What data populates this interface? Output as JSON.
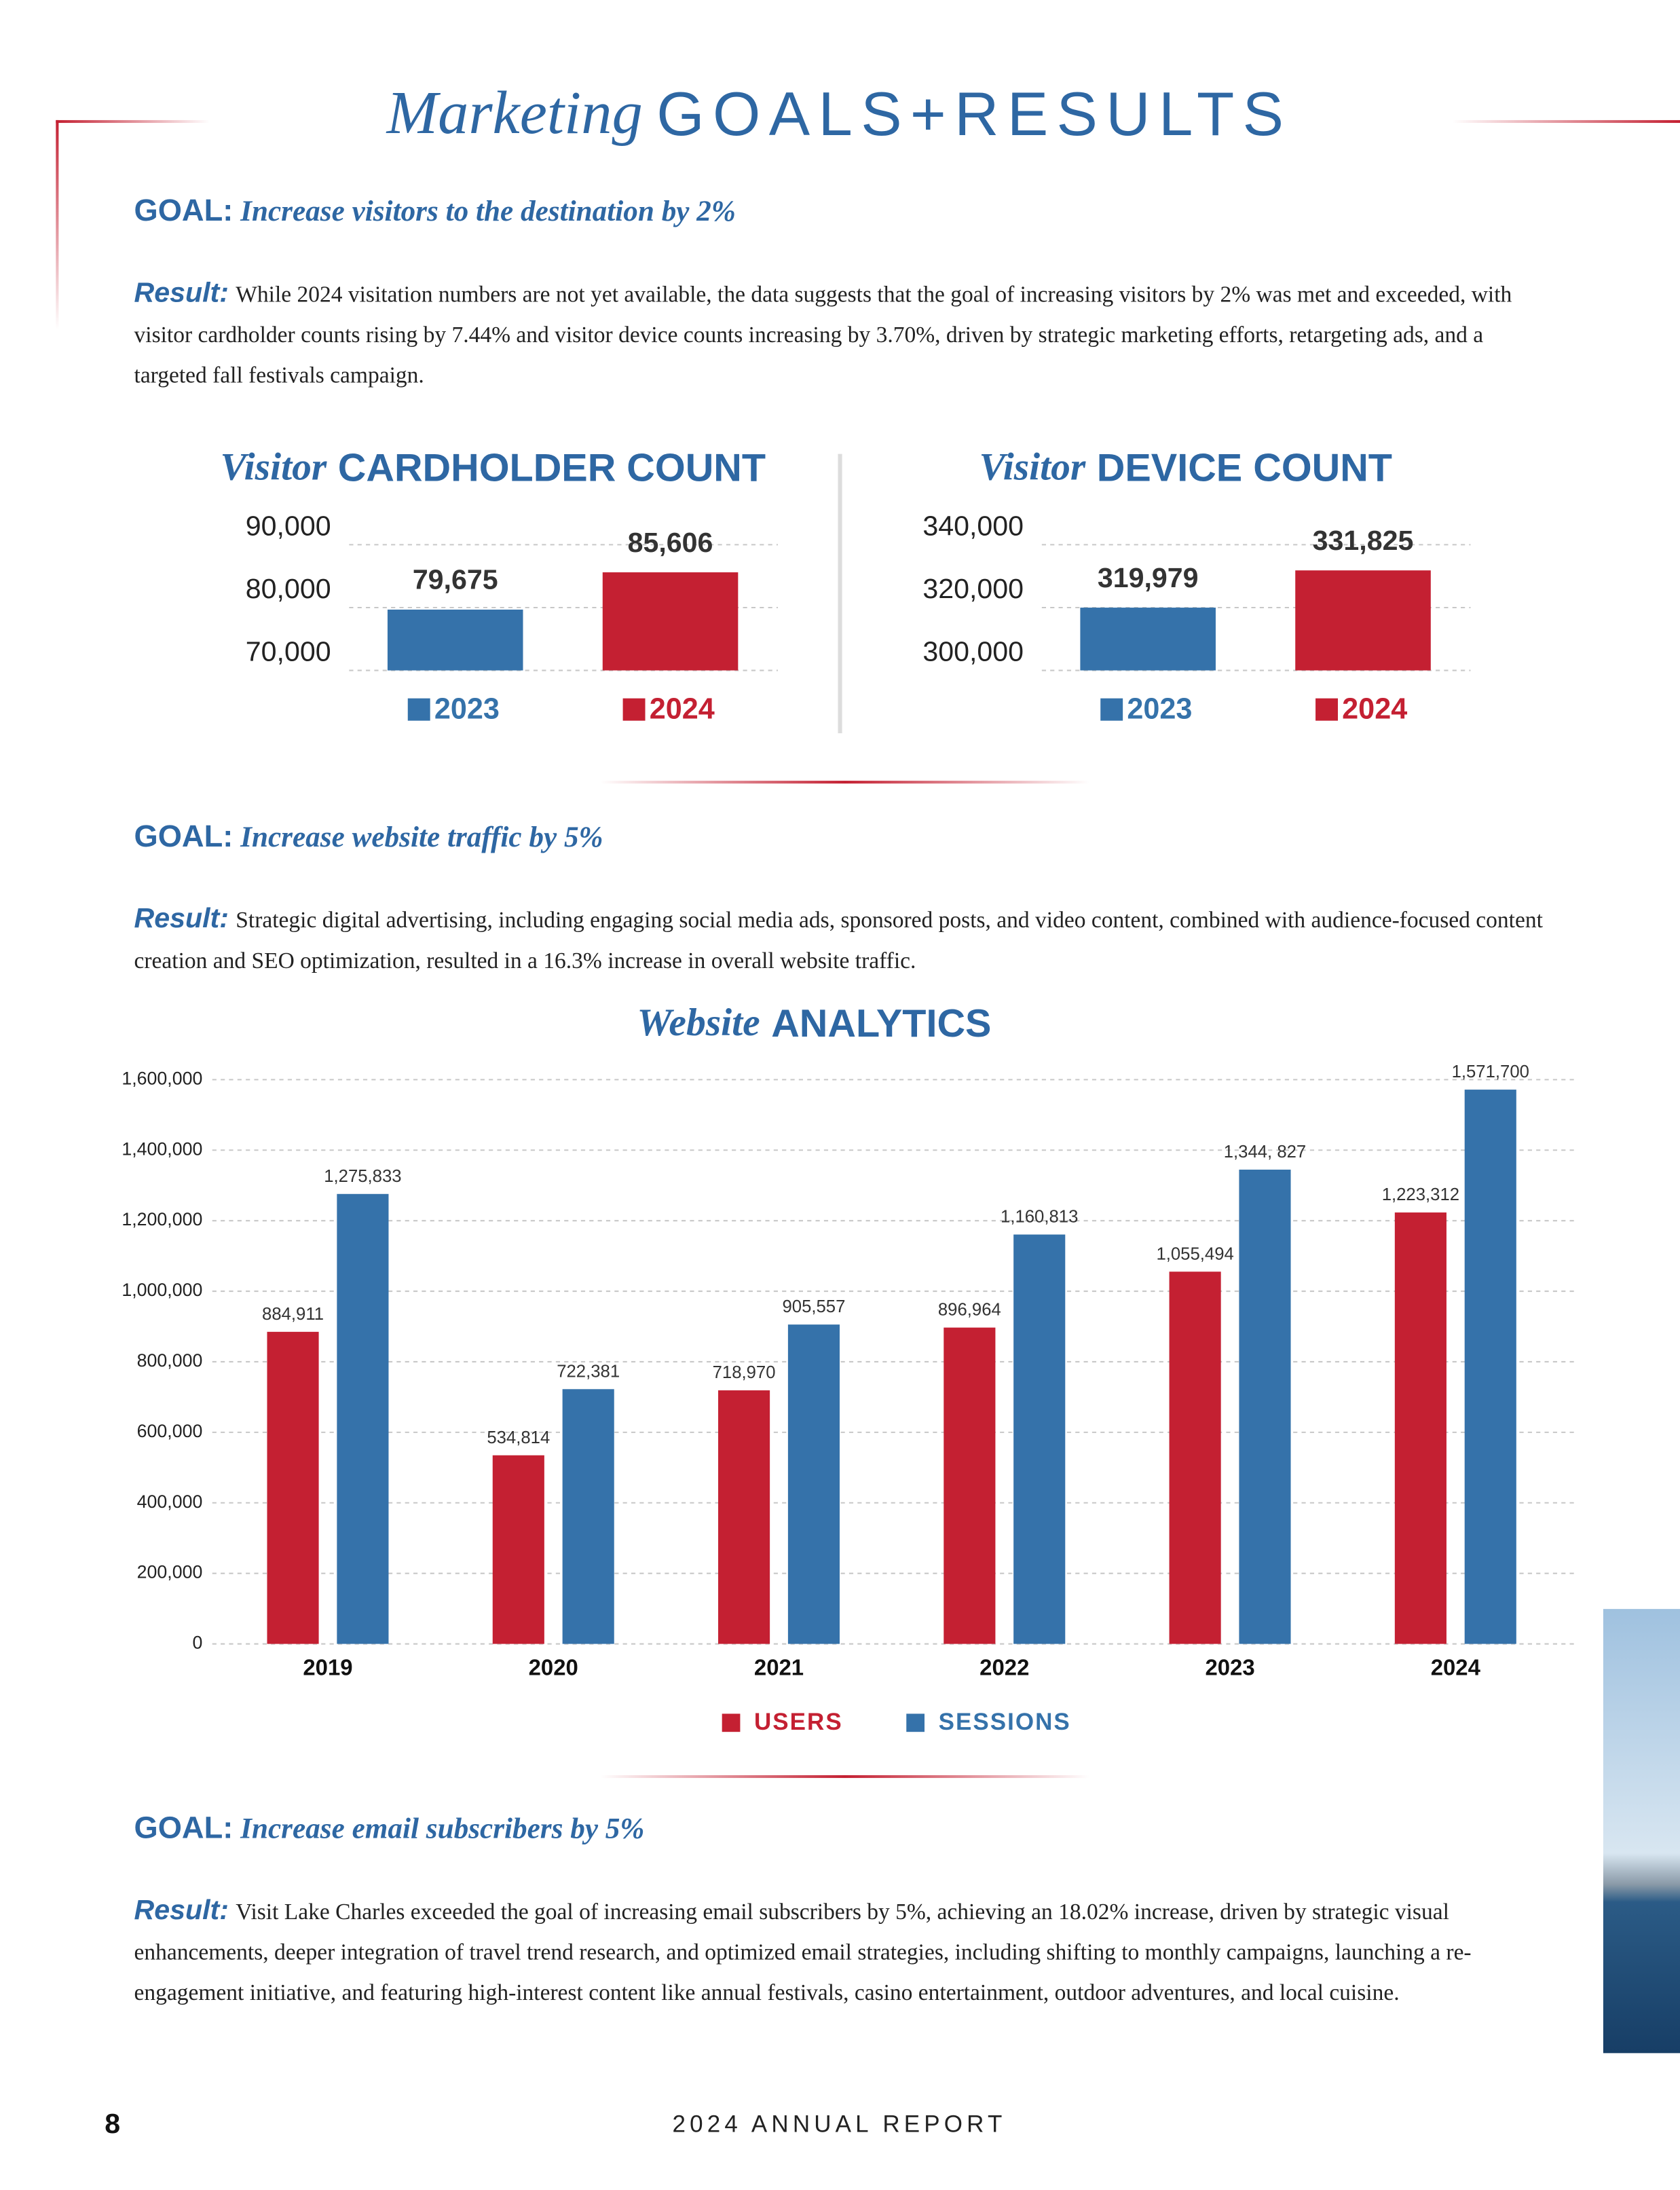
{
  "header": {
    "title_italic": "Marketing",
    "title": "GOALS+RESULTS"
  },
  "goals": [
    {
      "goal_label": "GOAL:",
      "goal": "Increase visitors to the destination by 2%",
      "result_label": "Result:",
      "result": "While 2024 visitation numbers are not yet available, the data suggests that the goal of increasing visitors by 2% was met and exceeded, with visitor cardholder counts rising by 7.44% and visitor device counts increasing by 3.70%, driven by strategic marketing efforts, retargeting ads, and a targeted fall festivals campaign."
    },
    {
      "goal_label": "GOAL:",
      "goal": "Increase website traffic by 5%",
      "result_label": "Result:",
      "result": "Strategic digital advertising, including engaging social media ads, sponsored posts, and video content, combined with audience-focused content creation and SEO optimization, resulted in a 16.3% increase in overall website traffic."
    },
    {
      "goal_label": "GOAL:",
      "goal": "Increase email subscribers by 5%",
      "result_label": "Result:",
      "result": "Visit Lake Charles exceeded the goal of increasing email subscribers by 5%, achieving an 18.02% increase, driven by strategic visual enhancements, deeper integration of travel trend research, and optimized email strategies, including shifting to monthly campaigns, launching a re-engagement initiative, and featuring high-interest content like annual festivals, casino entertainment, outdoor adventures, and local cuisine."
    }
  ],
  "chart_data": [
    {
      "type": "bar",
      "title_italic": "Visitor",
      "title": "CARDHOLDER COUNT",
      "series": [
        {
          "name": "2023",
          "color": "#3572aa",
          "values": [
            79675
          ],
          "value_labels": [
            "79,675"
          ]
        },
        {
          "name": "2024",
          "color": "#c42032",
          "values": [
            85606
          ],
          "value_labels": [
            "85,606"
          ]
        }
      ],
      "ylim": [
        70000,
        90000
      ],
      "yticks": [
        {
          "value": 70000,
          "label": "70,000"
        },
        {
          "value": 80000,
          "label": "80,000"
        },
        {
          "value": 90000,
          "label": "90,000"
        }
      ],
      "grid": true
    },
    {
      "type": "bar",
      "title_italic": "Visitor",
      "title": "DEVICE COUNT",
      "series": [
        {
          "name": "2023",
          "color": "#3572aa",
          "values": [
            319979
          ],
          "value_labels": [
            "319,979"
          ]
        },
        {
          "name": "2024",
          "color": "#c42032",
          "values": [
            331825
          ],
          "value_labels": [
            "331,825"
          ]
        }
      ],
      "ylim": [
        300000,
        340000
      ],
      "yticks": [
        {
          "value": 300000,
          "label": "300,000"
        },
        {
          "value": 320000,
          "label": "320,000"
        },
        {
          "value": 340000,
          "label": "340,000"
        }
      ],
      "grid": true
    },
    {
      "type": "bar",
      "title_italic": "Website",
      "title": "ANALYTICS",
      "categories": [
        "2019",
        "2020",
        "2021",
        "2022",
        "2023",
        "2024"
      ],
      "series": [
        {
          "name": "USERS",
          "color": "#c42032",
          "values": [
            884911,
            534814,
            718970,
            896964,
            1055494,
            1223312
          ],
          "value_labels": [
            "884,911",
            "534,814",
            "718,970",
            "896,964",
            "1,055,494",
            "1,223,312"
          ]
        },
        {
          "name": "SESSIONS",
          "color": "#3572aa",
          "values": [
            1275833,
            722381,
            905557,
            1160813,
            1344827,
            1571700
          ],
          "value_labels": [
            "1,275,833",
            "722,381",
            "905,557",
            "1,160,813",
            "1,344, 827",
            "1,571,700"
          ]
        }
      ],
      "ylim": [
        0,
        1600000
      ],
      "yticks": [
        0,
        {
          "value": 200000,
          "label": "200,000"
        },
        {
          "value": 400000,
          "label": "400,000"
        },
        {
          "value": 600000,
          "label": "600,000"
        },
        {
          "value": 800000,
          "label": "800,000"
        },
        {
          "value": 1000000,
          "label": "1,000,000"
        },
        {
          "value": 1200000,
          "label": "1,200,000"
        },
        {
          "value": 1400000,
          "label": "1,400,000"
        },
        {
          "value": 1600000,
          "label": "1,600,000"
        }
      ],
      "grid": true
    }
  ],
  "footer": {
    "page": "8",
    "report": "2024 ANNUAL REPORT"
  }
}
